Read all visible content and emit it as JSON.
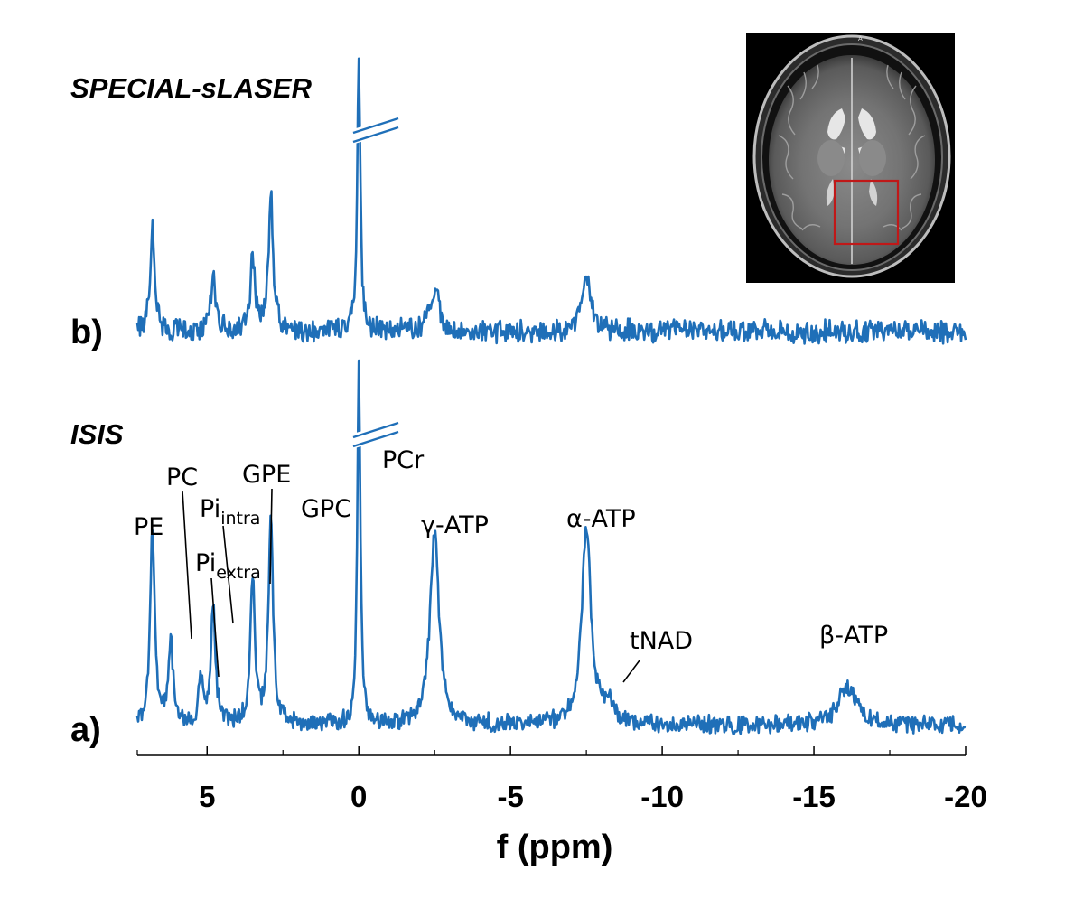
{
  "figure": {
    "panel_b_label": "b)",
    "panel_a_label": "a)",
    "panel_b_title": "SPECIAL-sLASER",
    "panel_a_title": "ISIS"
  },
  "chart_data": [
    {
      "type": "line",
      "panel": "a",
      "title": "ISIS",
      "xlabel": "f (ppm)",
      "ylabel": "",
      "xlim": [
        7.3,
        -20
      ],
      "x_reversed": true,
      "x_ticks": [
        5,
        0,
        -5,
        -10,
        -15,
        -20
      ],
      "x_tick_labels": [
        "5",
        "0",
        "-5",
        "-10",
        "-15",
        "-20"
      ],
      "grid": false,
      "y_axis_break_at_pcr": true,
      "series": [
        {
          "color": "#1f6fb8",
          "peaks": [
            {
              "label": "PE",
              "ppm": 6.8,
              "height": 0.6
            },
            {
              "label": "PC",
              "ppm": 6.2,
              "height": 0.26
            },
            {
              "label": "Piextra",
              "ppm": 5.2,
              "height": 0.13
            },
            {
              "label": "Piintra",
              "ppm": 4.8,
              "height": 0.36
            },
            {
              "label": "GPE",
              "ppm": 3.5,
              "height": 0.45
            },
            {
              "label": "GPC",
              "ppm": 2.9,
              "height": 0.64
            },
            {
              "label": "PCr",
              "ppm": 0.0,
              "height": 1.0
            },
            {
              "label": "γ-ATP",
              "ppm": -2.5,
              "height": 0.58
            },
            {
              "label": "α-ATP",
              "ppm": -7.5,
              "height": 0.61
            },
            {
              "label": "tNAD",
              "ppm": -8.2,
              "height": 0.06
            },
            {
              "label": "β-ATP",
              "ppm": -16.1,
              "height": 0.12
            }
          ]
        }
      ],
      "annotations": [
        {
          "id": "PE",
          "text": "PE"
        },
        {
          "id": "PC",
          "text": "PC"
        },
        {
          "id": "Pi_intra",
          "text": "Pi",
          "sub": "intra"
        },
        {
          "id": "Pi_extra",
          "text": "Pi",
          "sub": "extra"
        },
        {
          "id": "GPE",
          "text": "GPE"
        },
        {
          "id": "GPC",
          "text": "GPC"
        },
        {
          "id": "PCr",
          "text": "PCr"
        },
        {
          "id": "gATP",
          "text": "γ-ATP"
        },
        {
          "id": "aATP",
          "text": "α-ATP"
        },
        {
          "id": "tNAD",
          "text": "tNAD"
        },
        {
          "id": "bATP",
          "text": "β-ATP"
        }
      ]
    },
    {
      "type": "line",
      "panel": "b",
      "title": "SPECIAL-sLASER",
      "xlim": [
        7.3,
        -20
      ],
      "x_reversed": true,
      "grid": false,
      "y_axis_break_at_pcr": true,
      "series": [
        {
          "color": "#1f6fb8",
          "peaks": [
            {
              "ppm": 6.8,
              "height": 0.45
            },
            {
              "ppm": 4.8,
              "height": 0.25
            },
            {
              "ppm": 3.5,
              "height": 0.32
            },
            {
              "ppm": 2.9,
              "height": 0.58
            },
            {
              "ppm": 0.0,
              "height": 1.0
            },
            {
              "ppm": -2.5,
              "height": 0.18
            },
            {
              "ppm": -7.5,
              "height": 0.22
            }
          ]
        }
      ]
    }
  ],
  "inset": {
    "type": "axial-mri-brain",
    "roi_color": "#c01818"
  }
}
